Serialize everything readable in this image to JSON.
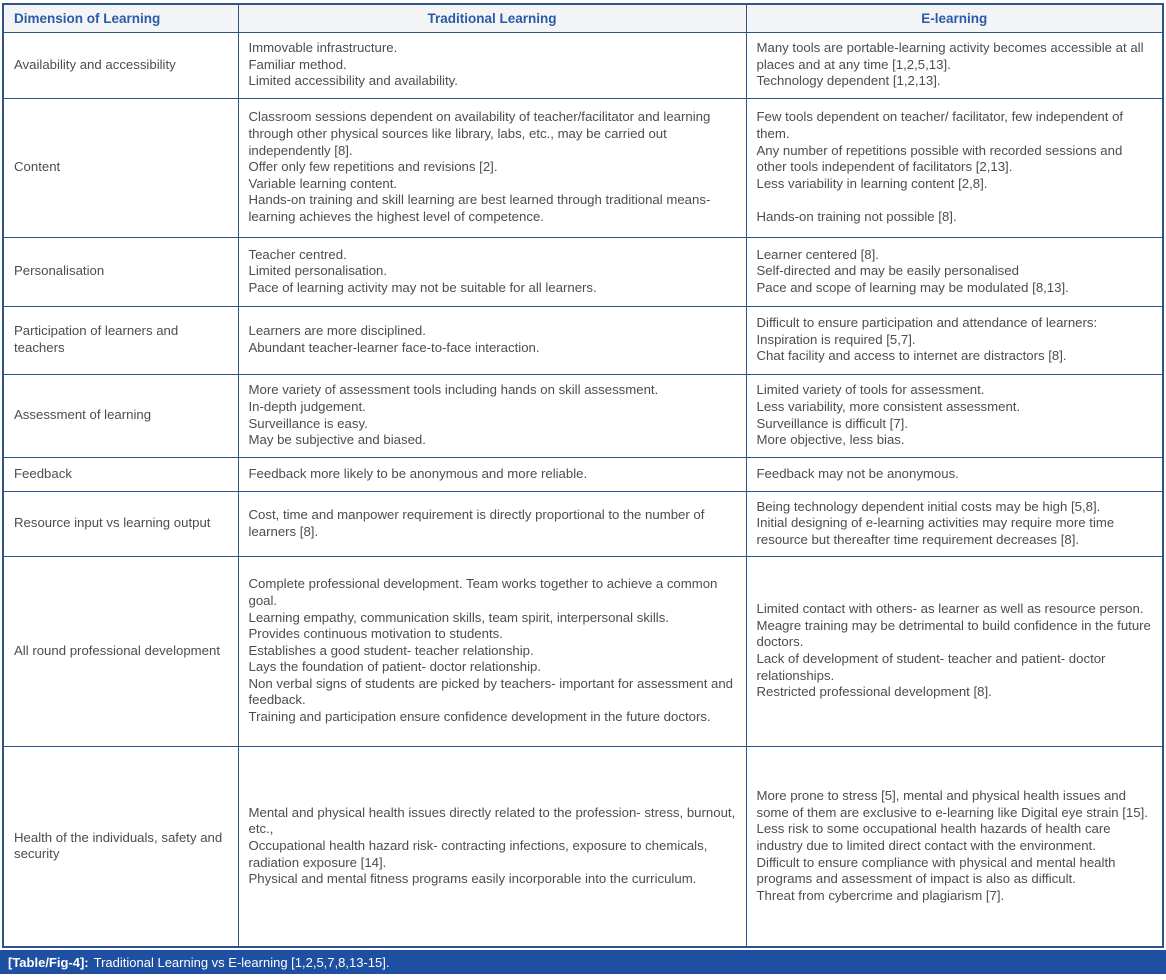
{
  "table": {
    "columns": [
      "Dimension of Learning",
      "Traditional Learning",
      "E-learning"
    ],
    "rows": [
      {
        "dimension": "Availability and accessibility",
        "traditional": [
          "Immovable infrastructure.",
          "Familiar method.",
          "Limited accessibility and availability."
        ],
        "elearning": [
          "Many tools are portable-learning activity becomes accessible at all places and at any time [1,2,5,13].",
          "Technology dependent [1,2,13]."
        ]
      },
      {
        "dimension": "Content",
        "traditional": [
          "Classroom sessions dependent on availability of teacher/facilitator and learning through other physical sources like library, labs, etc., may be carried out independently [8].",
          "Offer only few repetitions and revisions [2].",
          "Variable learning content.",
          "Hands-on training and skill learning are best learned through traditional means- learning achieves the highest level of competence."
        ],
        "elearning": [
          "Few tools dependent on teacher/ facilitator, few independent of them.",
          "Any number of repetitions possible with recorded sessions and other tools independent of facilitators [2,13].",
          "Less variability in learning content [2,8].",
          "",
          "Hands-on training not possible [8]."
        ]
      },
      {
        "dimension": "Personalisation",
        "traditional": [
          "Teacher centred.",
          "Limited personalisation.",
          "Pace of learning activity may not be suitable for all learners."
        ],
        "elearning": [
          "Learner centered [8].",
          "Self-directed and may be easily personalised",
          "Pace and scope of learning may be modulated [8,13]."
        ]
      },
      {
        "dimension": "Participation of learners and teachers",
        "traditional": [
          "Learners are more disciplined.",
          "Abundant teacher-learner face-to-face interaction."
        ],
        "elearning": [
          "Difficult to ensure participation and attendance of learners:",
          "Inspiration is required [5,7].",
          "Chat facility and access to internet are distractors [8]."
        ]
      },
      {
        "dimension": "Assessment of learning",
        "traditional": [
          "More variety of assessment tools including hands on skill assessment.",
          "In-depth judgement.",
          "Surveillance is easy.",
          "May be subjective and biased."
        ],
        "elearning": [
          "Limited variety of tools for assessment.",
          "Less variability, more consistent assessment.",
          "Surveillance is difficult [7].",
          "More objective, less bias."
        ]
      },
      {
        "dimension": "Feedback",
        "traditional": [
          "Feedback more likely to be anonymous and more reliable."
        ],
        "elearning": [
          "Feedback may not be anonymous."
        ]
      },
      {
        "dimension": "Resource input vs learning output",
        "traditional": [
          "Cost, time and manpower requirement is directly proportional to the number of learners [8]."
        ],
        "elearning": [
          "Being technology dependent initial costs may be high [5,8].",
          "Initial designing of e-learning activities may require more time resource but thereafter time requirement decreases [8]."
        ]
      },
      {
        "dimension": "All round professional development",
        "traditional": [
          "Complete professional development. Team works together to achieve a common goal.",
          "Learning empathy, communication skills, team spirit, interpersonal skills.",
          "Provides continuous motivation to students.",
          "Establishes a good student- teacher relationship.",
          "Lays the foundation of patient- doctor relationship.",
          "Non verbal signs of students are picked by teachers- important for assessment and feedback.",
          "Training and participation ensure confidence development in the future doctors."
        ],
        "elearning": [
          "Limited contact with others- as learner as well as resource person.",
          "Meagre training may be detrimental to build confidence in the future doctors.",
          "Lack of development of student- teacher and patient- doctor relationships.",
          "Restricted professional development [8]."
        ]
      },
      {
        "dimension": "Health of the individuals, safety and security",
        "traditional": [
          "Mental and physical health issues directly related to the profession- stress, burnout, etc.,",
          "Occupational health hazard risk- contracting infections, exposure to chemicals, radiation exposure [14].",
          "Physical and mental fitness programs easily incorporable into the curriculum."
        ],
        "elearning": [
          "More prone to stress [5], mental and physical health issues and some of them are exclusive to e-learning like Digital eye strain [15].",
          "Less risk to some occupational health hazards of health care industry due to limited direct contact with the environment.",
          "Difficult to ensure compliance with physical and mental health programs and assessment of impact is also as difficult.",
          "Threat from cybercrime and plagiarism [7]."
        ]
      }
    ]
  },
  "caption": {
    "label": "[Table/Fig-4]:",
    "text": "Traditional Learning vs E-learning [1,2,5,7,8,13-15]."
  },
  "colors": {
    "border_blue": "#2e5385",
    "header_text_blue": "#2b5ba6",
    "caption_bar_blue": "#1e4fa1",
    "body_text": "#4c4d4f",
    "header_bg": "#f3f4f6"
  }
}
